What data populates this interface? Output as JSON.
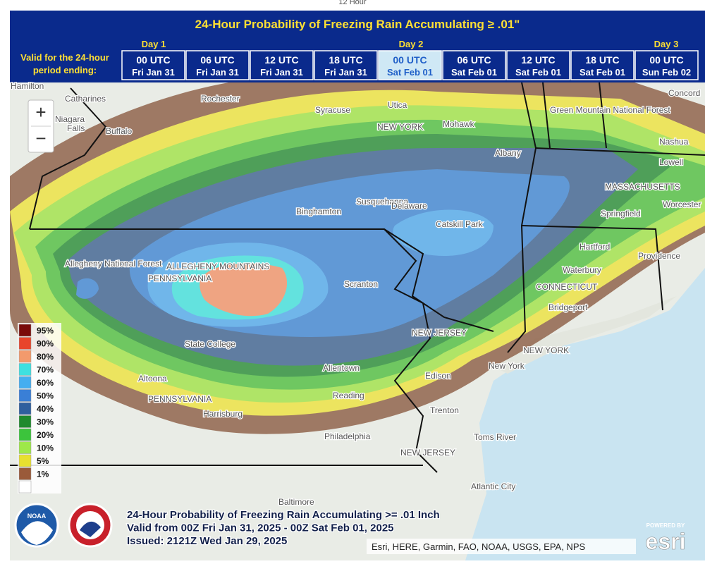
{
  "top_fragment": "12 Hour",
  "header": {
    "title": "24-Hour Probability of Freezing Rain Accumulating ≥ .01\"",
    "period_label": [
      "Valid for the 24-hour",
      "period ending:"
    ],
    "days": [
      "Day 1",
      "Day 2",
      "Day 3"
    ],
    "tabs": [
      {
        "time": "00 UTC",
        "date": "Fri Jan 31"
      },
      {
        "time": "06 UTC",
        "date": "Fri Jan 31"
      },
      {
        "time": "12 UTC",
        "date": "Fri Jan 31"
      },
      {
        "time": "18 UTC",
        "date": "Fri Jan 31"
      },
      {
        "time": "00 UTC",
        "date": "Sat Feb 01"
      },
      {
        "time": "06 UTC",
        "date": "Sat Feb 01"
      },
      {
        "time": "12 UTC",
        "date": "Sat Feb 01"
      },
      {
        "time": "18 UTC",
        "date": "Sat Feb 01"
      },
      {
        "time": "00 UTC",
        "date": "Sun Feb 02"
      }
    ]
  },
  "zoom": {
    "in": "+",
    "out": "−"
  },
  "legend": {
    "labels": [
      "95%",
      "90%",
      "80%",
      "70%",
      "60%",
      "50%",
      "40%",
      "30%",
      "20%",
      "10%",
      "5%",
      "1%"
    ]
  },
  "map_labels": [
    "Hamilton",
    "Catharines",
    "Niagara",
    "Falls",
    "Buffalo",
    "Rochester",
    "Syracuse",
    "Utica",
    "NEW YORK",
    "Mohawk",
    "Albany",
    "Binghamton",
    "Susquehanna",
    "Delaware",
    "Catskill Park",
    "Allegheny National Forest",
    "ALLEGHENY MOUNTAINS",
    "PENNSYLVANIA",
    "Scranton",
    "State College",
    "Altoona",
    "Allentown",
    "Reading",
    "Harrisburg",
    "PENNSYLVANIA",
    "Philadelphia",
    "Trenton",
    "Edison",
    "NEW JERSEY",
    "New York",
    "NEW YORK",
    "NEW JERSEY",
    "Toms River",
    "Atlantic City",
    "Hartford",
    "Waterbury",
    "CONNECTICUT",
    "Bridgeport",
    "Providence",
    "Springfield",
    "MASSACHUSETTS",
    "Worcester",
    "Lowell",
    "Nashua",
    "Concord",
    "Green Mountain National Forest",
    "Baltimore"
  ],
  "caption": [
    "24-Hour Probability of Freezing Rain Accumulating >= .01 Inch",
    "Valid from 00Z Fri Jan 31, 2025 - 00Z Sat Feb 01, 2025",
    "Issued: 2121Z Wed Jan 29, 2025"
  ],
  "attribution": "Esri, HERE, Garmin, FAO, NOAA, USGS, EPA, NPS",
  "logos": {
    "noaa": "NOAA",
    "esri_powered": "POWERED BY",
    "esri": "esri"
  }
}
